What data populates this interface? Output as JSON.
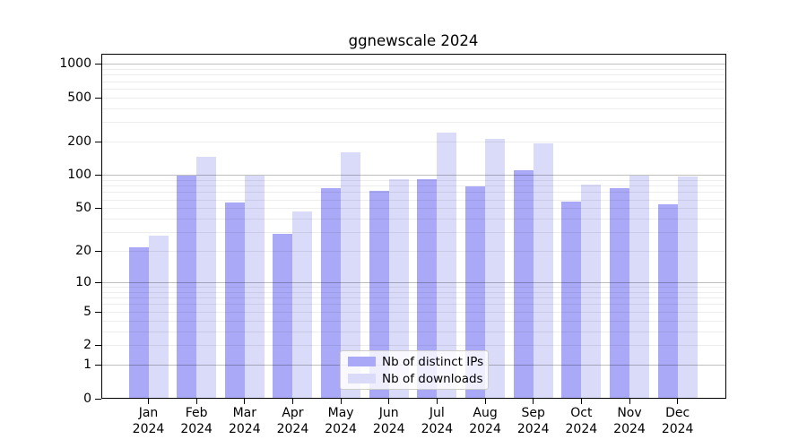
{
  "chart_data": {
    "type": "bar",
    "title": "ggnewscale 2024",
    "categories": [
      "Jan",
      "Feb",
      "Mar",
      "Apr",
      "May",
      "Jun",
      "Jul",
      "Aug",
      "Sep",
      "Oct",
      "Nov",
      "Dec"
    ],
    "x_tick_second_line": "2024",
    "series": [
      {
        "name": "Nb of distinct IPs",
        "color": "#a9a9f7",
        "values": [
          22,
          100,
          57,
          29,
          77,
          72,
          92,
          79,
          111,
          58,
          76,
          55
        ]
      },
      {
        "name": "Nb of downloads",
        "color": "#dadaf9",
        "values": [
          28,
          148,
          100,
          47,
          163,
          93,
          242,
          214,
          194,
          83,
          100,
          97
        ]
      }
    ],
    "yscale": "log1p",
    "y_ticks": [
      0,
      1,
      2,
      5,
      10,
      20,
      50,
      100,
      200,
      500,
      1000
    ],
    "ylim": [
      0,
      1200
    ],
    "grid": {
      "major_color": "rgba(0,0,0,0.25)",
      "minor_color": "rgba(0,0,0,0.07)",
      "major_at": [
        1,
        10,
        100,
        1000
      ]
    },
    "legend_position": "lower center",
    "xlabel": "",
    "ylabel": ""
  }
}
